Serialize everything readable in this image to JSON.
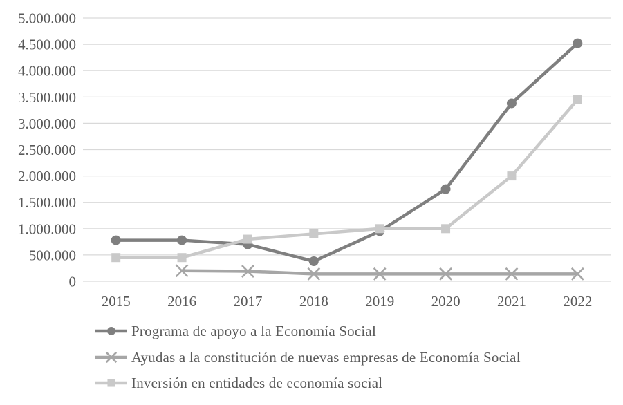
{
  "chart_data": {
    "type": "line",
    "title": "",
    "xlabel": "",
    "ylabel": "",
    "categories": [
      "2015",
      "2016",
      "2017",
      "2018",
      "2019",
      "2020",
      "2021",
      "2022"
    ],
    "series": [
      {
        "name": "Programa de apoyo a la Economía Social",
        "marker": "circle",
        "color": "#7f7f7f",
        "values": [
          780000,
          780000,
          700000,
          380000,
          950000,
          1750000,
          3380000,
          4520000
        ]
      },
      {
        "name": "Ayudas a la constitución de nuevas empresas de Economía Social",
        "marker": "x",
        "color": "#a6a6a6",
        "values": [
          null,
          200000,
          190000,
          140000,
          140000,
          140000,
          140000,
          140000
        ]
      },
      {
        "name": "Inversión en entidades de economía social",
        "marker": "square",
        "color": "#c9c9c9",
        "values": [
          450000,
          450000,
          800000,
          900000,
          1000000,
          1000000,
          2000000,
          3450000
        ]
      }
    ],
    "y_axis": {
      "min": 0,
      "max": 5000000,
      "step": 500000,
      "tick_labels": [
        "0",
        "500.000",
        "1.000.000",
        "1.500.000",
        "2.000.000",
        "2.500.000",
        "3.000.000",
        "3.500.000",
        "4.000.000",
        "4.500.000",
        "5.000.000"
      ]
    },
    "x_axis": {
      "tick_labels": [
        "2015",
        "2016",
        "2017",
        "2018",
        "2019",
        "2020",
        "2021",
        "2022"
      ]
    },
    "grid": true,
    "legend_position": "bottom-left",
    "colors": {
      "gridline": "#d9d9d9",
      "text": "#595959",
      "background": "#ffffff"
    }
  }
}
